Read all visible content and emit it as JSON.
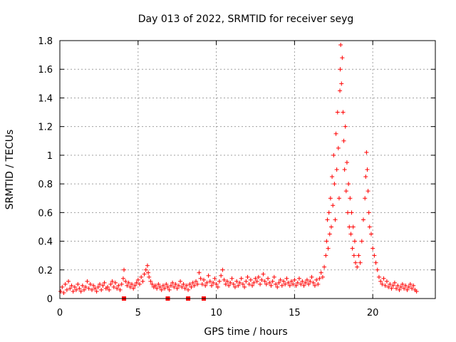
{
  "chart_data": {
    "type": "scatter",
    "title": "Day 013 of 2022, SRMTID for receiver seyg",
    "xlabel": "GPS time / hours",
    "ylabel": "SRMTID / TECUs",
    "xlim": [
      0,
      24
    ],
    "ylim": [
      0,
      1.8
    ],
    "grid": true,
    "x_ticks": [
      "0",
      "5",
      "10",
      "15",
      "20"
    ],
    "y_ticks": [
      "0",
      "0.2",
      "0.4",
      "0.6",
      "0.8",
      "1",
      "1.2",
      "1.4",
      "1.6",
      "1.8"
    ],
    "marker": "+",
    "color": "#ff0000",
    "series": [
      {
        "name": "SRMTID",
        "points": [
          [
            0.05,
            0.05
          ],
          [
            0.15,
            0.08
          ],
          [
            0.25,
            0.04
          ],
          [
            0.35,
            0.1
          ],
          [
            0.45,
            0.06
          ],
          [
            0.55,
            0.12
          ],
          [
            0.65,
            0.07
          ],
          [
            0.75,
            0.09
          ],
          [
            0.85,
            0.05
          ],
          [
            0.95,
            0.08
          ],
          [
            1.05,
            0.06
          ],
          [
            1.15,
            0.1
          ],
          [
            1.25,
            0.07
          ],
          [
            1.35,
            0.05
          ],
          [
            1.45,
            0.09
          ],
          [
            1.55,
            0.06
          ],
          [
            1.65,
            0.08
          ],
          [
            1.75,
            0.12
          ],
          [
            1.85,
            0.07
          ],
          [
            1.95,
            0.1
          ],
          [
            2.05,
            0.06
          ],
          [
            2.15,
            0.09
          ],
          [
            2.25,
            0.07
          ],
          [
            2.35,
            0.05
          ],
          [
            2.45,
            0.08
          ],
          [
            2.55,
            0.1
          ],
          [
            2.65,
            0.06
          ],
          [
            2.75,
            0.09
          ],
          [
            2.85,
            0.11
          ],
          [
            2.95,
            0.07
          ],
          [
            3.05,
            0.08
          ],
          [
            3.15,
            0.06
          ],
          [
            3.25,
            0.1
          ],
          [
            3.35,
            0.12
          ],
          [
            3.45,
            0.08
          ],
          [
            3.55,
            0.11
          ],
          [
            3.65,
            0.07
          ],
          [
            3.75,
            0.09
          ],
          [
            3.85,
            0.06
          ],
          [
            3.95,
            0.1
          ],
          [
            4.05,
            0.14
          ],
          [
            4.1,
            0.2
          ],
          [
            4.2,
            0.12
          ],
          [
            4.3,
            0.09
          ],
          [
            4.4,
            0.11
          ],
          [
            4.5,
            0.08
          ],
          [
            4.6,
            0.1
          ],
          [
            4.7,
            0.07
          ],
          [
            4.8,
            0.09
          ],
          [
            4.9,
            0.11
          ],
          [
            5.0,
            0.13
          ],
          [
            5.1,
            0.1
          ],
          [
            5.2,
            0.15
          ],
          [
            5.3,
            0.12
          ],
          [
            5.4,
            0.17
          ],
          [
            5.5,
            0.2
          ],
          [
            5.6,
            0.23
          ],
          [
            5.65,
            0.18
          ],
          [
            5.7,
            0.15
          ],
          [
            5.8,
            0.12
          ],
          [
            5.9,
            0.1
          ],
          [
            6.0,
            0.08
          ],
          [
            6.1,
            0.09
          ],
          [
            6.2,
            0.07
          ],
          [
            6.3,
            0.1
          ],
          [
            6.4,
            0.08
          ],
          [
            6.5,
            0.06
          ],
          [
            6.6,
            0.09
          ],
          [
            6.7,
            0.07
          ],
          [
            6.8,
            0.1
          ],
          [
            6.9,
            0.08
          ],
          [
            7.0,
            0.06
          ],
          [
            7.1,
            0.09
          ],
          [
            7.2,
            0.11
          ],
          [
            7.3,
            0.08
          ],
          [
            7.4,
            0.1
          ],
          [
            7.5,
            0.07
          ],
          [
            7.6,
            0.09
          ],
          [
            7.7,
            0.12
          ],
          [
            7.8,
            0.08
          ],
          [
            7.9,
            0.1
          ],
          [
            8.0,
            0.07
          ],
          [
            8.1,
            0.09
          ],
          [
            8.2,
            0.06
          ],
          [
            8.3,
            0.1
          ],
          [
            8.4,
            0.08
          ],
          [
            8.5,
            0.11
          ],
          [
            8.6,
            0.09
          ],
          [
            8.7,
            0.12
          ],
          [
            8.8,
            0.1
          ],
          [
            8.9,
            0.18
          ],
          [
            9.0,
            0.14
          ],
          [
            9.1,
            0.1
          ],
          [
            9.2,
            0.13
          ],
          [
            9.3,
            0.09
          ],
          [
            9.4,
            0.11
          ],
          [
            9.5,
            0.16
          ],
          [
            9.6,
            0.12
          ],
          [
            9.7,
            0.09
          ],
          [
            9.8,
            0.11
          ],
          [
            9.9,
            0.14
          ],
          [
            10.0,
            0.1
          ],
          [
            10.1,
            0.08
          ],
          [
            10.2,
            0.12
          ],
          [
            10.3,
            0.16
          ],
          [
            10.4,
            0.2
          ],
          [
            10.5,
            0.13
          ],
          [
            10.6,
            0.1
          ],
          [
            10.7,
            0.12
          ],
          [
            10.8,
            0.09
          ],
          [
            10.9,
            0.11
          ],
          [
            11.0,
            0.14
          ],
          [
            11.1,
            0.1
          ],
          [
            11.2,
            0.08
          ],
          [
            11.3,
            0.12
          ],
          [
            11.4,
            0.09
          ],
          [
            11.5,
            0.11
          ],
          [
            11.6,
            0.14
          ],
          [
            11.7,
            0.1
          ],
          [
            11.8,
            0.08
          ],
          [
            11.9,
            0.12
          ],
          [
            12.0,
            0.15
          ],
          [
            12.1,
            0.1
          ],
          [
            12.2,
            0.13
          ],
          [
            12.3,
            0.09
          ],
          [
            12.4,
            0.11
          ],
          [
            12.5,
            0.14
          ],
          [
            12.6,
            0.12
          ],
          [
            12.7,
            0.15
          ],
          [
            12.8,
            0.1
          ],
          [
            12.9,
            0.13
          ],
          [
            13.0,
            0.17
          ],
          [
            13.1,
            0.12
          ],
          [
            13.2,
            0.1
          ],
          [
            13.3,
            0.14
          ],
          [
            13.4,
            0.11
          ],
          [
            13.5,
            0.09
          ],
          [
            13.6,
            0.12
          ],
          [
            13.7,
            0.15
          ],
          [
            13.8,
            0.1
          ],
          [
            13.9,
            0.08
          ],
          [
            14.0,
            0.11
          ],
          [
            14.1,
            0.13
          ],
          [
            14.2,
            0.09
          ],
          [
            14.3,
            0.12
          ],
          [
            14.4,
            0.1
          ],
          [
            14.5,
            0.14
          ],
          [
            14.6,
            0.11
          ],
          [
            14.7,
            0.09
          ],
          [
            14.8,
            0.12
          ],
          [
            14.9,
            0.1
          ],
          [
            15.0,
            0.13
          ],
          [
            15.1,
            0.09
          ],
          [
            15.2,
            0.11
          ],
          [
            15.3,
            0.14
          ],
          [
            15.4,
            0.1
          ],
          [
            15.5,
            0.12
          ],
          [
            15.6,
            0.09
          ],
          [
            15.7,
            0.11
          ],
          [
            15.8,
            0.13
          ],
          [
            15.9,
            0.1
          ],
          [
            16.0,
            0.12
          ],
          [
            16.1,
            0.15
          ],
          [
            16.2,
            0.11
          ],
          [
            16.3,
            0.09
          ],
          [
            16.4,
            0.13
          ],
          [
            16.5,
            0.1
          ],
          [
            16.6,
            0.14
          ],
          [
            16.7,
            0.18
          ],
          [
            16.8,
            0.15
          ],
          [
            16.9,
            0.22
          ],
          [
            17.0,
            0.3
          ],
          [
            17.05,
            0.4
          ],
          [
            17.1,
            0.55
          ],
          [
            17.15,
            0.35
          ],
          [
            17.2,
            0.6
          ],
          [
            17.25,
            0.45
          ],
          [
            17.3,
            0.7
          ],
          [
            17.35,
            0.5
          ],
          [
            17.4,
            0.85
          ],
          [
            17.45,
            0.65
          ],
          [
            17.5,
            1.0
          ],
          [
            17.55,
            0.8
          ],
          [
            17.6,
            0.55
          ],
          [
            17.65,
            1.15
          ],
          [
            17.7,
            0.9
          ],
          [
            17.75,
            1.3
          ],
          [
            17.8,
            1.05
          ],
          [
            17.85,
            0.7
          ],
          [
            17.9,
            1.45
          ],
          [
            17.92,
            1.6
          ],
          [
            17.95,
            1.77
          ],
          [
            18.0,
            1.5
          ],
          [
            18.05,
            1.68
          ],
          [
            18.1,
            1.3
          ],
          [
            18.15,
            1.1
          ],
          [
            18.2,
            0.9
          ],
          [
            18.25,
            1.2
          ],
          [
            18.3,
            0.75
          ],
          [
            18.35,
            0.95
          ],
          [
            18.4,
            0.6
          ],
          [
            18.45,
            0.8
          ],
          [
            18.5,
            0.5
          ],
          [
            18.55,
            0.7
          ],
          [
            18.6,
            0.45
          ],
          [
            18.65,
            0.6
          ],
          [
            18.7,
            0.35
          ],
          [
            18.75,
            0.5
          ],
          [
            18.8,
            0.3
          ],
          [
            18.85,
            0.4
          ],
          [
            18.9,
            0.25
          ],
          [
            19.0,
            0.22
          ],
          [
            19.1,
            0.3
          ],
          [
            19.2,
            0.25
          ],
          [
            19.3,
            0.4
          ],
          [
            19.4,
            0.55
          ],
          [
            19.5,
            0.7
          ],
          [
            19.55,
            0.85
          ],
          [
            19.6,
            1.02
          ],
          [
            19.65,
            0.9
          ],
          [
            19.7,
            0.75
          ],
          [
            19.75,
            0.6
          ],
          [
            19.8,
            0.5
          ],
          [
            19.9,
            0.45
          ],
          [
            20.0,
            0.35
          ],
          [
            20.1,
            0.3
          ],
          [
            20.2,
            0.25
          ],
          [
            20.3,
            0.2
          ],
          [
            20.4,
            0.15
          ],
          [
            20.5,
            0.12
          ],
          [
            20.6,
            0.1
          ],
          [
            20.7,
            0.14
          ],
          [
            20.8,
            0.09
          ],
          [
            20.9,
            0.12
          ],
          [
            21.0,
            0.08
          ],
          [
            21.1,
            0.1
          ],
          [
            21.2,
            0.07
          ],
          [
            21.3,
            0.09
          ],
          [
            21.4,
            0.11
          ],
          [
            21.5,
            0.07
          ],
          [
            21.6,
            0.09
          ],
          [
            21.7,
            0.06
          ],
          [
            21.8,
            0.08
          ],
          [
            21.9,
            0.1
          ],
          [
            22.0,
            0.07
          ],
          [
            22.1,
            0.09
          ],
          [
            22.2,
            0.06
          ],
          [
            22.3,
            0.08
          ],
          [
            22.4,
            0.1
          ],
          [
            22.5,
            0.07
          ],
          [
            22.6,
            0.09
          ],
          [
            22.7,
            0.06
          ],
          [
            22.8,
            0.05
          ]
        ]
      },
      {
        "name": "flags",
        "marker": "square",
        "points": [
          [
            4.1,
            0
          ],
          [
            6.9,
            0
          ],
          [
            8.2,
            0
          ],
          [
            9.2,
            0
          ]
        ]
      }
    ]
  }
}
